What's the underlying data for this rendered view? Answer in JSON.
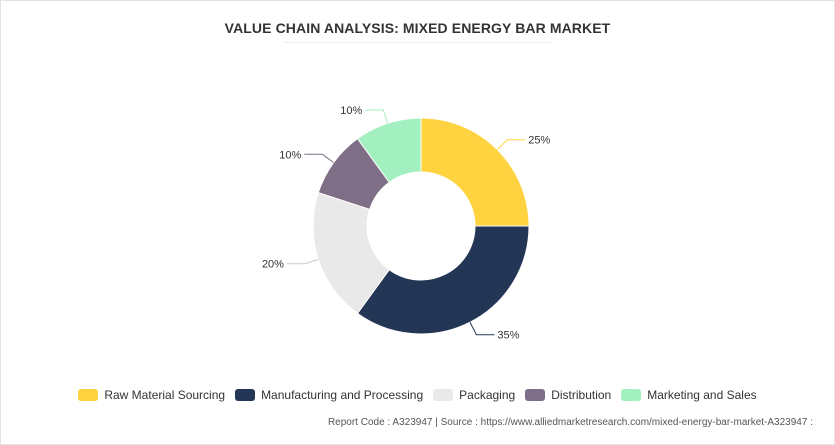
{
  "chart_data": {
    "type": "pie",
    "title": "VALUE CHAIN ANALYSIS: MIXED ENERGY BAR MARKET",
    "categories": [
      "Raw Material Sourcing",
      "Manufacturing and Processing",
      "Packaging",
      "Distribution",
      "Marketing and Sales"
    ],
    "values": [
      25,
      35,
      20,
      10,
      10
    ],
    "labels": [
      "25%",
      "35%",
      "20%",
      "10%",
      "10%"
    ],
    "colors": [
      "#ffd23f",
      "#243656",
      "#e9e9e9",
      "#7f6f86",
      "#a2f0c0"
    ],
    "donut": true,
    "legend_position": "bottom"
  },
  "footer": {
    "text": "Report Code : A323947  |  Source : https://www.alliedmarketresearch.com/mixed-energy-bar-market-A323947 :"
  }
}
